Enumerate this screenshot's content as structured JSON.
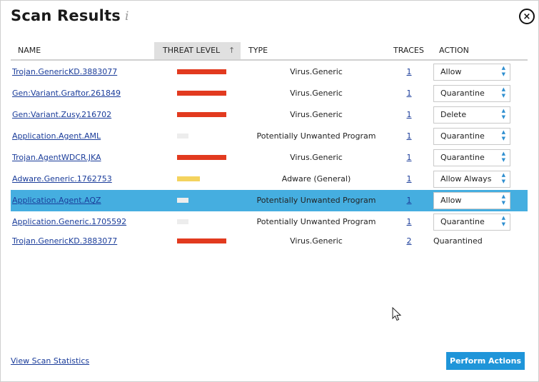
{
  "header": {
    "title": "Scan Results",
    "info_icon": "i",
    "close_icon": "×"
  },
  "table": {
    "columns": {
      "name": "NAME",
      "threat": "THREAT LEVEL",
      "type": "TYPE",
      "traces": "TRACES",
      "action": "ACTION"
    },
    "sort_indicator": "↑",
    "rows": [
      {
        "name": "Trojan.GenericKD.3883077",
        "threat_level": "high",
        "threat_color": "#e23a1f",
        "type": "Virus.Generic",
        "traces": "1",
        "action": "Allow",
        "action_kind": "select"
      },
      {
        "name": "Gen:Variant.Graftor.261849",
        "threat_level": "high",
        "threat_color": "#e23a1f",
        "type": "Virus.Generic",
        "traces": "1",
        "action": "Quarantine",
        "action_kind": "select"
      },
      {
        "name": "Gen:Variant.Zusy.216702",
        "threat_level": "high",
        "threat_color": "#e23a1f",
        "type": "Virus.Generic",
        "traces": "1",
        "action": "Delete",
        "action_kind": "select"
      },
      {
        "name": "Application.Agent.AML",
        "threat_level": "low",
        "threat_color": "#ededed",
        "type": "Potentially Unwanted Program",
        "traces": "1",
        "action": "Quarantine",
        "action_kind": "select"
      },
      {
        "name": "Trojan.AgentWDCR.JKA",
        "threat_level": "high",
        "threat_color": "#e23a1f",
        "type": "Virus.Generic",
        "traces": "1",
        "action": "Quarantine",
        "action_kind": "select"
      },
      {
        "name": "Adware.Generic.1762753",
        "threat_level": "medium",
        "threat_color": "#f4d35e",
        "type": "Adware (General)",
        "traces": "1",
        "action": "Allow Always",
        "action_kind": "select"
      },
      {
        "name": "Application.Agent.AQZ",
        "threat_level": "low",
        "threat_color": "#ededed",
        "type": "Potentially Unwanted Program",
        "traces": "1",
        "action": "Allow",
        "action_kind": "select",
        "selected": true
      },
      {
        "name": "Application.Generic.1705592",
        "threat_level": "low",
        "threat_color": "#ededed",
        "type": "Potentially Unwanted Program",
        "traces": "1",
        "action": "Quarantine",
        "action_kind": "select"
      },
      {
        "name": "Trojan.GenericKD.3883077",
        "threat_level": "high",
        "threat_color": "#e23a1f",
        "type": "Virus.Generic",
        "traces": "2",
        "action": "Quarantined",
        "action_kind": "text"
      }
    ]
  },
  "footer": {
    "stats_link": "View Scan Statistics",
    "perform_button": "Perform Actions"
  },
  "colors": {
    "accent": "#1f95d9",
    "selected_row": "#45aee0",
    "link": "#1a3c9a"
  }
}
